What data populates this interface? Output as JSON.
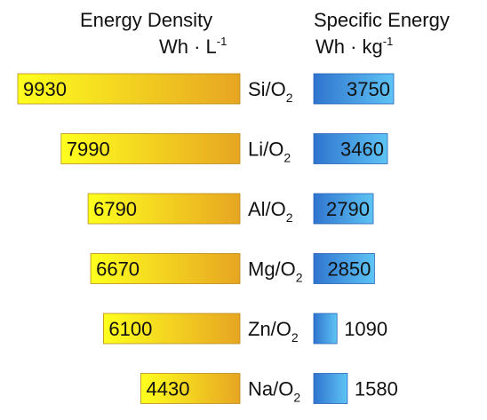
{
  "chart_data": {
    "type": "bar",
    "title": "",
    "categories": [
      "Si/O2",
      "Li/O2",
      "Al/O2",
      "Mg/O2",
      "Zn/O2",
      "Na/O2"
    ],
    "category_display": [
      {
        "base": "Si/O",
        "sub": "2"
      },
      {
        "base": "Li/O",
        "sub": "2"
      },
      {
        "base": "Al/O",
        "sub": "2"
      },
      {
        "base": "Mg/O",
        "sub": "2"
      },
      {
        "base": "Zn/O",
        "sub": "2"
      },
      {
        "base": "Na/O",
        "sub": "2"
      }
    ],
    "series": [
      {
        "name": "Energy Density",
        "unit_text": "Wh · L",
        "unit_sup": "-1",
        "values": [
          9930,
          7990,
          6790,
          6670,
          6100,
          4430
        ],
        "value_labels": [
          "9930",
          "7990",
          "6790",
          "6670",
          "6100",
          "4430"
        ],
        "direction": "leftward",
        "colors": [
          "#ffff1e",
          "#e7a522"
        ]
      },
      {
        "name": "Specific Energy",
        "unit_text": "Wh · kg",
        "unit_sup": "-1",
        "values": [
          3750,
          3460,
          2790,
          2850,
          1090,
          1580
        ],
        "value_labels": [
          "3750",
          "3460",
          "2790",
          "2850",
          "1090",
          "1580"
        ],
        "direction": "rightward",
        "colors": [
          "#2f74cf",
          "#5ec4f4"
        ]
      }
    ],
    "value_labels_outside": [
      false,
      false,
      false,
      false,
      true,
      true
    ]
  }
}
